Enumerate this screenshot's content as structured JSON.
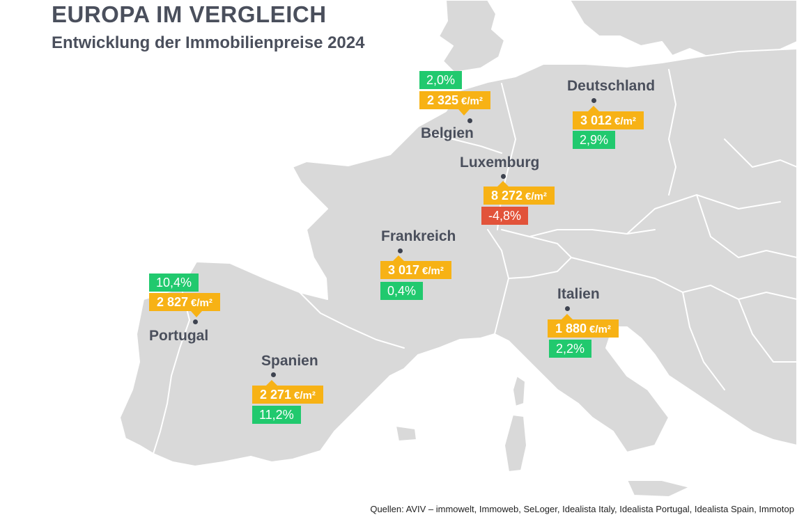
{
  "title": "EUROPA IM VERGLEICH",
  "subtitle": "Entwicklung der Immobilienpreise 2024",
  "price_unit": "€/m²",
  "colors": {
    "land": "#d9d9d9",
    "price_box": "#f7b215",
    "increase": "#21c96e",
    "decrease": "#e2533a",
    "text": "#4a4f5c"
  },
  "countries": {
    "belgien": {
      "name": "Belgien",
      "price": "2 325",
      "change": "2,0%",
      "change_direction": "up"
    },
    "deutschland": {
      "name": "Deutschland",
      "price": "3 012",
      "change": "2,9%",
      "change_direction": "up"
    },
    "luxemburg": {
      "name": "Luxemburg",
      "price": "8 272",
      "change": "-4,8%",
      "change_direction": "down"
    },
    "frankreich": {
      "name": "Frankreich",
      "price": "3 017",
      "change": "0,4%",
      "change_direction": "up"
    },
    "portugal": {
      "name": "Portugal",
      "price": "2 827",
      "change": "10,4%",
      "change_direction": "up"
    },
    "italien": {
      "name": "Italien",
      "price": "1 880",
      "change": "2,2%",
      "change_direction": "up"
    },
    "spanien": {
      "name": "Spanien",
      "price": "2 271",
      "change": "11,2%",
      "change_direction": "up"
    }
  },
  "source": "Quellen: AVIV – immowelt, Immoweb, SeLoger, Idealista Italy, Idealista Portugal, Idealista Spain, Immotop"
}
